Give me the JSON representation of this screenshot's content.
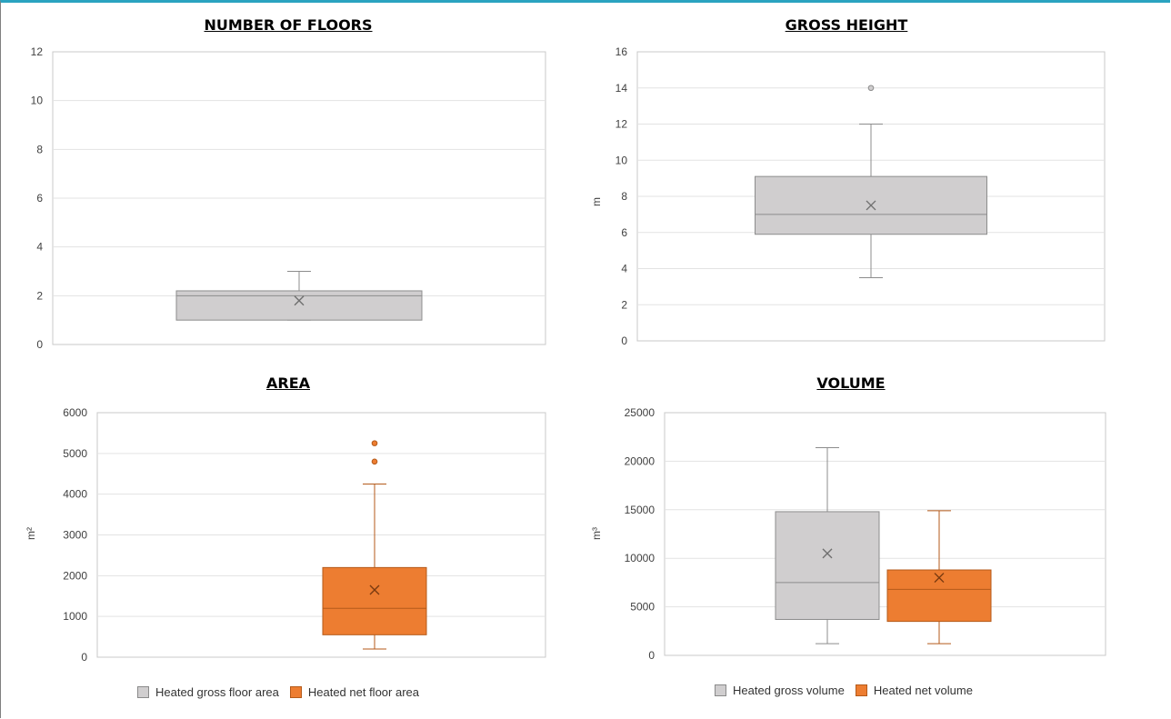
{
  "colors": {
    "gross": "#d0cecf",
    "gross_border": "#8c8c8c",
    "net": "#ed7d31",
    "net_border": "#b45a1a",
    "grid": "#e3e3e3",
    "frame_accent": "#2aa3c0"
  },
  "chart_data": [
    {
      "id": "floors",
      "type": "box",
      "title": "NUMBER OF FLOORS",
      "ylabel": "",
      "ylim": [
        0,
        12
      ],
      "yticks": [
        "0",
        "2",
        "4",
        "6",
        "8",
        "10",
        "12"
      ],
      "series": [
        {
          "fill": "gross",
          "min": 1,
          "q1": 1,
          "median": 2,
          "q3": 2.2,
          "max": 3,
          "mean": 1.8,
          "outliers": []
        }
      ]
    },
    {
      "id": "height",
      "type": "box",
      "title": "GROSS HEIGHT",
      "ylabel": "m",
      "ylim": [
        0,
        16
      ],
      "yticks": [
        "0",
        "2",
        "4",
        "6",
        "8",
        "10",
        "12",
        "14",
        "16"
      ],
      "series": [
        {
          "fill": "gross",
          "min": 3.5,
          "q1": 5.9,
          "median": 7,
          "q3": 9.1,
          "max": 12,
          "mean": 7.5,
          "outliers": [
            14
          ]
        }
      ]
    },
    {
      "id": "area",
      "type": "box",
      "title": "AREA",
      "ylabel": "m²",
      "ylim": [
        0,
        6000
      ],
      "yticks": [
        "0",
        "1000",
        "2000",
        "3000",
        "4000",
        "5000",
        "6000"
      ],
      "series": [
        {
          "name": "Heated gross floor area",
          "fill": "gross",
          "hidden": true
        },
        {
          "name": "Heated net floor area",
          "fill": "net",
          "min": 200,
          "q1": 550,
          "median": 1200,
          "q3": 2200,
          "max": 4250,
          "mean": 1650,
          "outliers": [
            4800,
            5250
          ]
        }
      ],
      "legend": [
        "Heated gross floor area",
        "Heated net floor area"
      ]
    },
    {
      "id": "volume",
      "type": "box",
      "title": "VOLUME",
      "ylabel": "m³",
      "ylim": [
        0,
        25000
      ],
      "yticks": [
        "0",
        "5000",
        "10000",
        "15000",
        "20000",
        "25000"
      ],
      "series": [
        {
          "name": "Heated gross volume",
          "fill": "gross",
          "min": 1200,
          "q1": 3700,
          "median": 7500,
          "q3": 14800,
          "max": 21400,
          "mean": 10500,
          "outliers": []
        },
        {
          "name": "Heated net volume",
          "fill": "net",
          "min": 1200,
          "q1": 3500,
          "median": 6800,
          "q3": 8800,
          "max": 14900,
          "mean": 8000,
          "outliers": []
        }
      ],
      "legend": [
        "Heated gross volume",
        "Heated net volume"
      ]
    }
  ]
}
